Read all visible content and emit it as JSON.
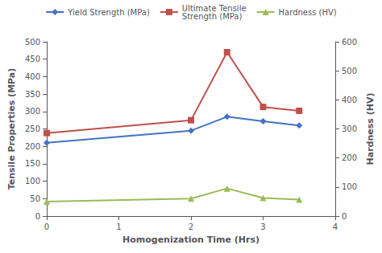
{
  "chart_data": {
    "type": "line",
    "x": [
      0,
      2,
      2.5,
      3,
      3.5
    ],
    "xlabel": "Homogenization Time (Hrs)",
    "ylabel": "Tensile Properties (MPa)",
    "y2label": "Hardness (HV)",
    "xlim": [
      0,
      4
    ],
    "xticks": [
      0,
      1,
      2,
      3,
      4
    ],
    "ylim": [
      0,
      500
    ],
    "yticks": [
      0,
      50,
      100,
      150,
      200,
      250,
      300,
      350,
      400,
      450,
      500
    ],
    "y2lim": [
      0,
      600
    ],
    "y2ticks": [
      0,
      100,
      200,
      300,
      400,
      500,
      600
    ],
    "grid": false,
    "legend": "top",
    "series": [
      {
        "name": "Yield Strength (MPa)",
        "color": "#4472C4",
        "marker": "diamond",
        "values": [
          210,
          245,
          285,
          272,
          260
        ]
      },
      {
        "name": "Ultimate Tensile\nStrength (MPa)",
        "color": "#C0504D",
        "marker": "square",
        "values": [
          238,
          275,
          470,
          313,
          302
        ]
      },
      {
        "name": "Hardness (HV)",
        "color": "#9BBB59",
        "marker": "triangle",
        "values": [
          50,
          60,
          95,
          62,
          57
        ],
        "axis": "y2"
      }
    ]
  }
}
